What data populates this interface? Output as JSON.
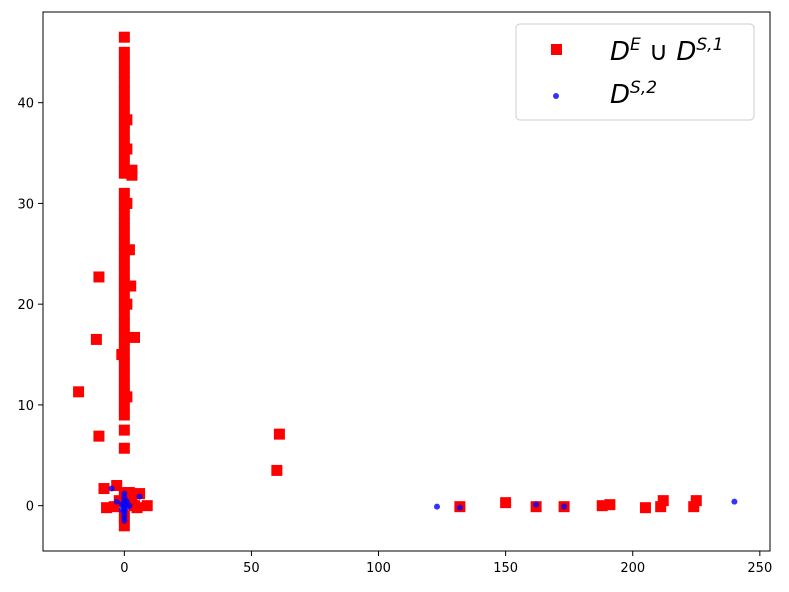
{
  "chart_data": {
    "type": "scatter",
    "title": "",
    "xlabel": "",
    "ylabel": "",
    "xlim": [
      -32,
      254
    ],
    "ylim": [
      -4.5,
      49
    ],
    "x_ticks": [
      0,
      50,
      100,
      150,
      200,
      250
    ],
    "y_ticks": [
      0,
      10,
      20,
      30,
      40
    ],
    "grid": false,
    "legend_position": "top-right",
    "series": [
      {
        "name_parts": {
          "a": "D",
          "a_sup": "E",
          "op": " ∪ ",
          "b": "D",
          "b_sup": "S,1"
        },
        "marker": "square",
        "color": "#ff0000",
        "points": [
          [
            0,
            46.5
          ],
          [
            0,
            45
          ],
          [
            0,
            44
          ],
          [
            0,
            43
          ],
          [
            0,
            42
          ],
          [
            0,
            41
          ],
          [
            0,
            40
          ],
          [
            0,
            39
          ],
          [
            0,
            38
          ],
          [
            0,
            37
          ],
          [
            0,
            36
          ],
          [
            0,
            35
          ],
          [
            0,
            34
          ],
          [
            0,
            33
          ],
          [
            0,
            31
          ],
          [
            0,
            30
          ],
          [
            0,
            29
          ],
          [
            0,
            28
          ],
          [
            0,
            27
          ],
          [
            0,
            26
          ],
          [
            0,
            25
          ],
          [
            0,
            24
          ],
          [
            0,
            23
          ],
          [
            0,
            22
          ],
          [
            0,
            21
          ],
          [
            0,
            20
          ],
          [
            0,
            19
          ],
          [
            0,
            18
          ],
          [
            0,
            17
          ],
          [
            0,
            16
          ],
          [
            0,
            15
          ],
          [
            0,
            14
          ],
          [
            0,
            13
          ],
          [
            0,
            12
          ],
          [
            0,
            11
          ],
          [
            0,
            10
          ],
          [
            0,
            9
          ],
          [
            0,
            7.5
          ],
          [
            0,
            5.7
          ],
          [
            1,
            38.3
          ],
          [
            1,
            35.4
          ],
          [
            1,
            30
          ],
          [
            1,
            10.8
          ],
          [
            1,
            20
          ],
          [
            3,
            33.3
          ],
          [
            3,
            32.8
          ],
          [
            2,
            25.4
          ],
          [
            2.5,
            21.8
          ],
          [
            4,
            16.7
          ],
          [
            -1,
            15
          ],
          [
            -10,
            22.7
          ],
          [
            -11,
            16.5
          ],
          [
            -18,
            11.3
          ],
          [
            -10,
            6.9
          ],
          [
            -8,
            1.7
          ],
          [
            -3,
            2
          ],
          [
            -2,
            0.5
          ],
          [
            -7,
            -0.2
          ],
          [
            -4,
            -0.1
          ],
          [
            0,
            -2
          ],
          [
            0,
            -1
          ],
          [
            0,
            0.5
          ],
          [
            0,
            1
          ],
          [
            1,
            1.3
          ],
          [
            2,
            1.3
          ],
          [
            3,
            0.5
          ],
          [
            4,
            0
          ],
          [
            6,
            1.2
          ],
          [
            9,
            0
          ],
          [
            5,
            -0.2
          ],
          [
            61,
            7.1
          ],
          [
            60,
            3.5
          ],
          [
            132,
            -0.1
          ],
          [
            150,
            0.3
          ],
          [
            162,
            -0.1
          ],
          [
            173,
            -0.1
          ],
          [
            188,
            0
          ],
          [
            191,
            0.1
          ],
          [
            205,
            -0.2
          ],
          [
            211,
            -0.1
          ],
          [
            212,
            0.5
          ],
          [
            224,
            -0.1
          ],
          [
            225,
            0.5
          ]
        ]
      },
      {
        "name_parts": {
          "a": "D",
          "a_sup": "S,2"
        },
        "marker": "circle",
        "color": "#0000ff",
        "points": [
          [
            0,
            1.2
          ],
          [
            0,
            0.8
          ],
          [
            0,
            0.5
          ],
          [
            0,
            0.2
          ],
          [
            0,
            0
          ],
          [
            0,
            -0.3
          ],
          [
            0,
            -0.6
          ],
          [
            0,
            -0.9
          ],
          [
            0,
            -1.2
          ],
          [
            0,
            -1.5
          ],
          [
            1,
            0.4
          ],
          [
            1,
            -0.2
          ],
          [
            -1,
            0.1
          ],
          [
            -1,
            -0.4
          ],
          [
            2,
            0
          ],
          [
            -5,
            1.7
          ],
          [
            6,
            0.9
          ],
          [
            -3,
            0.4
          ],
          [
            123,
            -0.1
          ],
          [
            132,
            -0.2
          ],
          [
            162,
            0.1
          ],
          [
            173,
            -0.1
          ],
          [
            240,
            0.4
          ]
        ]
      }
    ]
  }
}
